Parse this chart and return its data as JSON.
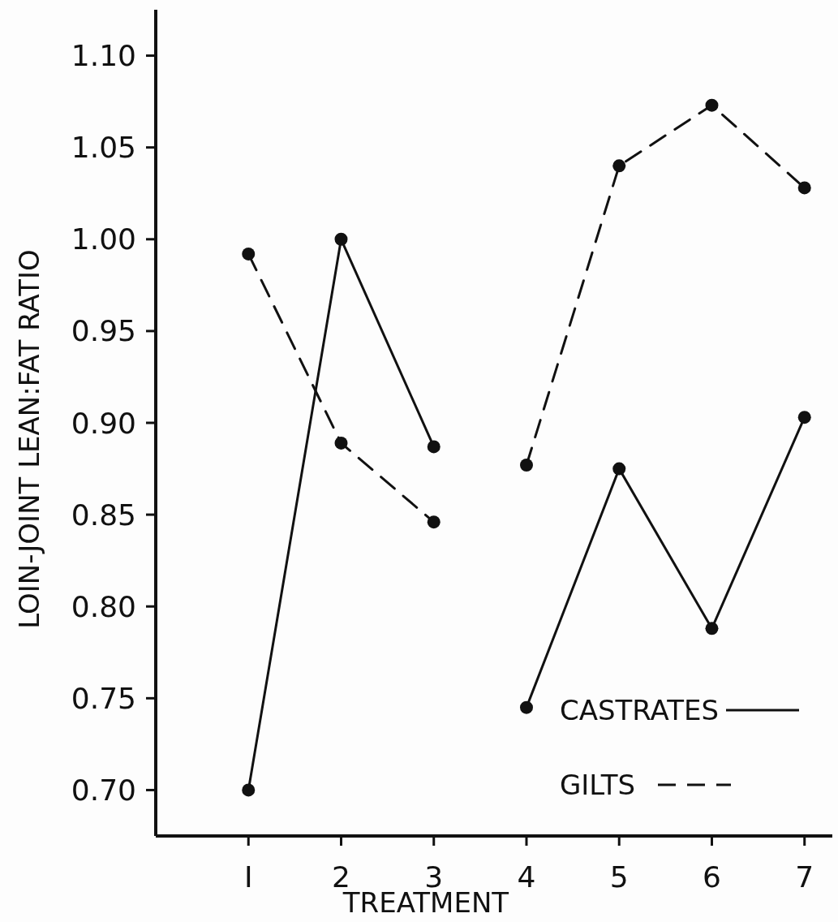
{
  "chart_data": {
    "type": "line",
    "xlabel": "TREATMENT",
    "ylabel": "LOIN-JOINT LEAN:FAT RATIO",
    "series": [
      {
        "name": "CASTRATES",
        "color": "#111111",
        "line_style": "solid",
        "x": [
          1,
          2,
          3
        ],
        "values": [
          0.7,
          1.0,
          0.887
        ]
      },
      {
        "color": "#111111",
        "line_style": "solid",
        "x": [
          4,
          5,
          6,
          7
        ],
        "values": [
          0.745,
          0.875,
          0.788,
          0.903
        ]
      },
      {
        "name": "GILTS",
        "color": "#111111",
        "line_style": "dashed",
        "x": [
          1,
          2,
          3
        ],
        "values": [
          0.992,
          0.889,
          0.846
        ]
      },
      {
        "color": "#111111",
        "line_style": "dashed",
        "x": [
          4,
          5,
          6,
          7
        ],
        "values": [
          0.877,
          1.04,
          1.073,
          1.028
        ]
      }
    ],
    "xlim": [
      0,
      7.3
    ],
    "xticks": [
      {
        "value": 1,
        "label": "I"
      },
      2,
      3,
      4,
      5,
      6,
      7
    ],
    "ylim": [
      0.675,
      1.125
    ],
    "yticks": [
      {
        "value": 0.7,
        "label": "0.70"
      },
      {
        "value": 0.75,
        "label": "0.75"
      },
      {
        "value": 0.8,
        "label": "0.80"
      },
      {
        "value": 0.85,
        "label": "0.85"
      },
      {
        "value": 0.9,
        "label": "0.90"
      },
      {
        "value": 0.95,
        "label": "0.95"
      },
      {
        "value": 1.0,
        "label": "1.00"
      },
      {
        "value": 1.05,
        "label": "1.05"
      },
      {
        "value": 1.1,
        "label": "1.10"
      }
    ],
    "marker": "circle",
    "legend": "bottom right",
    "grid": false
  }
}
